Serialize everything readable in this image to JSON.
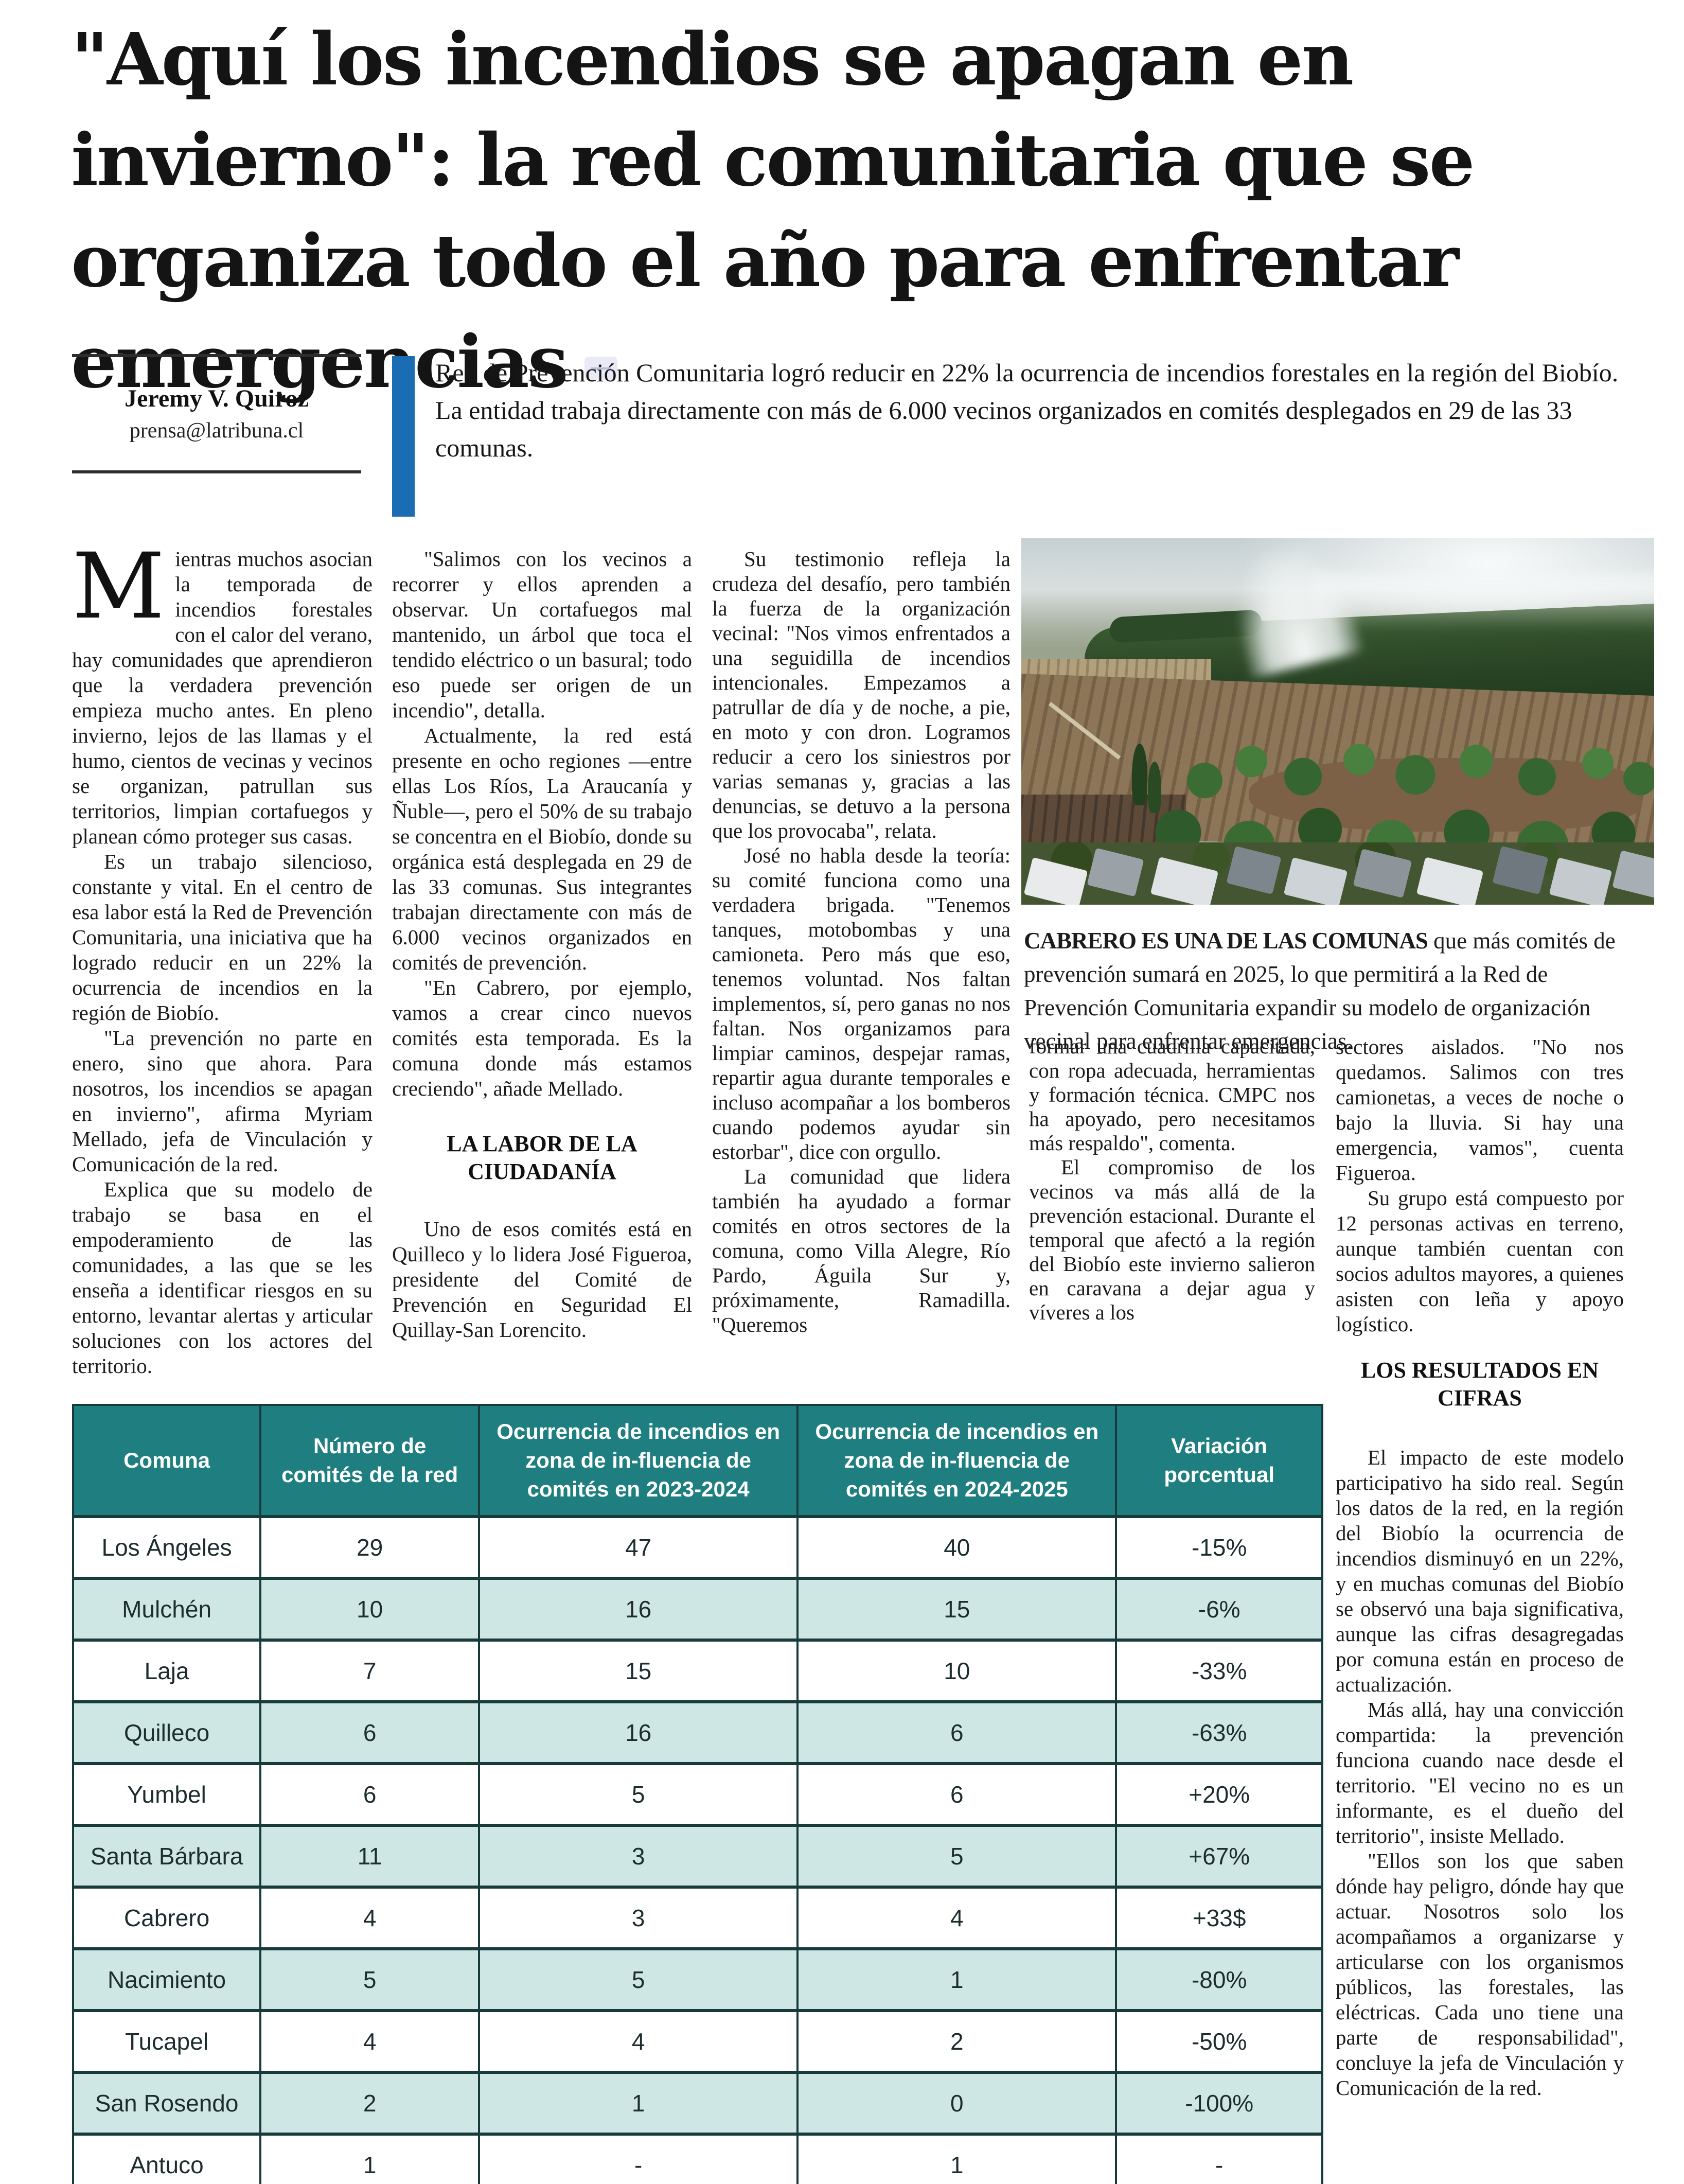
{
  "headline": {
    "text": "\"Aquí los incendios se apagan en invierno\": la red comunitaria que se organiza todo el año para enfrentar emergencias"
  },
  "byline": {
    "name": "Jeremy V. Quiroz",
    "email": "prensa@latribuna.cl"
  },
  "lede": {
    "text": "Red de Prevención Comunitaria logró reducir en 22% la ocurrencia de incendios forestales en la región del Biobío. La entidad trabaja directamente con más de 6.000 vecinos organizados en comités desplegados en 29 de las 33 comunas."
  },
  "article": {
    "col1": [
      "Mientras muchos asocian la temporada de incendios forestales con el calor del verano, hay comunidades que aprendieron que la verdadera prevención empieza mucho antes. En pleno invierno, lejos de las llamas y el humo, cientos de vecinas y vecinos se organizan, patrullan sus territorios, limpian cortafuegos y planean cómo proteger sus casas.",
      "Es un trabajo silencioso, constante y vital. En el centro de esa labor está la Red de Prevención Comunitaria, una iniciativa que ha logrado reducir en un 22% la ocurrencia de incendios en la región de Biobío.",
      "\"La prevención no parte en enero, sino que ahora. Para nosotros, los incendios se apagan en invierno\", afirma Myriam Mellado, jefa de Vinculación y Comunicación de la red.",
      "Explica que su modelo de trabajo se basa en el empoderamiento de las comunidades, a las que se les enseña a identificar riesgos en su entorno, levantar alertas y articular soluciones con los actores del territorio."
    ],
    "col2": [
      "\"Salimos con los vecinos a recorrer y ellos aprenden a observar. Un cortafuegos mal mantenido, un árbol que toca el tendido eléctrico o un basural; todo eso puede ser origen de un incendio\", detalla.",
      "Actualmente, la red está presente en ocho regiones —entre ellas Los Ríos, La Araucanía y Ñuble—, pero el 50% de su trabajo se concentra en el Biobío, donde su orgánica está desplegada en 29 de las 33 comunas. Sus integrantes trabajan directamente con más de 6.000 vecinos organizados en comités de prevención.",
      "\"En Cabrero, por ejemplo, vamos a crear cinco nuevos comités esta temporada. Es la comuna donde más estamos creciendo\", añade Mellado."
    ],
    "col2_subhead": "LA LABOR DE LA CIUDADANÍA",
    "col2b": [
      "Uno de esos comités está en Quilleco y lo lidera José Figueroa, presidente del Comité de Prevención en Seguridad El Quillay-San Lorencito."
    ],
    "col3": [
      "Su testimonio refleja la crudeza del desafío, pero también la fuerza de la organización vecinal: \"Nos vimos enfrentados a una seguidilla de incendios intencionales. Empezamos a patrullar de día y de noche, a pie, en moto y con dron. Logramos reducir a cero los siniestros por varias semanas y, gracias a las denuncias, se detuvo a la persona que los provocaba\", relata.",
      "José no habla desde la teoría: su comité funciona como una verdadera brigada. \"Tenemos tanques, motobombas y una camioneta. Pero más que eso, tenemos voluntad. Nos faltan implementos, sí, pero ganas no nos faltan. Nos organizamos para limpiar caminos, despejar ramas, repartir agua durante temporales e incluso acompañar a los bomberos cuando podemos ayudar sin estorbar\", dice con orgullo.",
      "La comunidad que lidera también ha ayudado a formar comités en otros sectores de la comuna, como Villa Alegre, Río Pardo, Águila Sur y, próximamente, Ramadilla. \"Queremos"
    ],
    "col4": [
      "formar una cuadrilla capacitada, con ropa adecuada, herramientas y formación técnica. CMPC nos ha apoyado, pero necesitamos más respaldo\", comenta.",
      "El compromiso de los vecinos va más allá de la prevención estacional. Durante el temporal que afectó a la región del Biobío este invierno salieron en caravana a dejar agua y víveres a los"
    ],
    "col5": [
      "sectores aislados. \"No nos quedamos. Salimos con tres camionetas, a veces de noche o bajo la lluvia. Si hay una emergencia, vamos\", cuenta Figueroa.",
      "Su grupo está compuesto por 12 personas activas en terreno, aunque también cuentan con socios adultos mayores, a quienes asisten con leña y apoyo logístico."
    ]
  },
  "photo": {
    "caption_lead": "CABRERO ES UNA DE LAS COMUNAS",
    "caption_rest": " que más comités de prevención sumará en 2025, lo que permitirá a la Red de Prevención Comunitaria expandir su modelo de organización vecinal para enfrentar emergencias."
  },
  "results": {
    "heading": "LOS RESULTADOS EN CIFRAS",
    "paras": [
      "El impacto de este modelo participativo ha sido real. Según los datos de la red, en la región del Biobío la ocurrencia de incendios disminuyó en un 22%, y en muchas comunas del Biobío se observó una baja significativa, aunque las cifras desagregadas por comuna están en proceso de actualización.",
      "Más allá, hay una convicción compartida: la prevención funciona cuando nace desde el territorio. \"El vecino no es un informante, es el dueño del territorio\", insiste Mellado.",
      "\"Ellos son los que saben dónde hay peligro, dónde hay que actuar. Nosotros solo los acompañamos a organizarse y articularse con los organismos públicos, las forestales, las eléctricas. Cada uno tiene una parte de responsabilidad\", concluye la jefa de Vinculación y Comunicación de la red."
    ]
  },
  "table": {
    "headers": [
      "Comuna",
      "Número de comités de la red",
      "Ocurrencia de incendios en zona de in-fluencia de comités en 2023-2024",
      "Ocurrencia de incendios en zona de in-fluencia de comités en 2024-2025",
      "Variación porcentual"
    ],
    "rows": [
      [
        "Los Ángeles",
        "29",
        "47",
        "40",
        "-15%"
      ],
      [
        "Mulchén",
        "10",
        "16",
        "15",
        "-6%"
      ],
      [
        "Laja",
        "7",
        "15",
        "10",
        "-33%"
      ],
      [
        "Quilleco",
        "6",
        "16",
        "6",
        "-63%"
      ],
      [
        "Yumbel",
        "6",
        "5",
        "6",
        "+20%"
      ],
      [
        "Santa Bárbara",
        "11",
        "3",
        "5",
        "+67%"
      ],
      [
        "Cabrero",
        "4",
        "3",
        "4",
        "+33$"
      ],
      [
        "Nacimiento",
        "5",
        "5",
        "1",
        "-80%"
      ],
      [
        "Tucapel",
        "4",
        "4",
        "2",
        "-50%"
      ],
      [
        "San Rosendo",
        "2",
        "1",
        "0",
        "-100%"
      ],
      [
        "Antuco",
        "1",
        "-",
        "1",
        "-"
      ]
    ]
  },
  "colors": {
    "accent_blue": "#1a6db3",
    "table_header_teal": "#1f7f80",
    "table_row_teal": "#cfe7e4"
  }
}
